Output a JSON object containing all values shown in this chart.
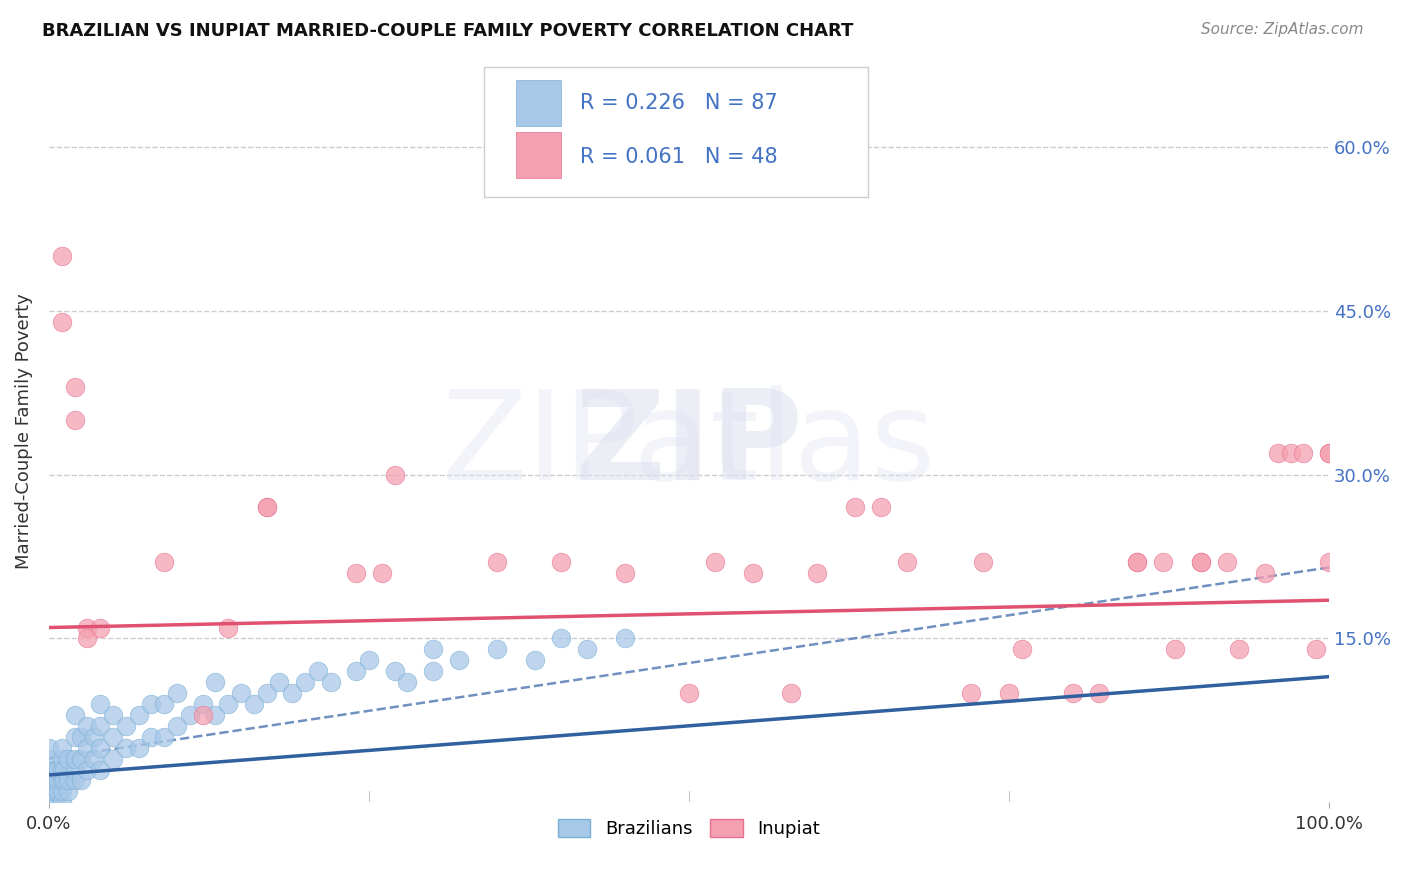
{
  "title": "BRAZILIAN VS INUPIAT MARRIED-COUPLE FAMILY POVERTY CORRELATION CHART",
  "source": "Source: ZipAtlas.com",
  "ylabel": "Married-Couple Family Poverty",
  "legend_label1": "Brazilians",
  "legend_label2": "Inupiat",
  "R1": 0.226,
  "N1": 87,
  "R2": 0.061,
  "N2": 48,
  "color1": "#a8c8e8",
  "color2": "#f4a0b0",
  "color1_edge": "#7aafd4",
  "color2_edge": "#e87090",
  "regression_color1": "#3060a0",
  "regression_color2": "#e05070",
  "dash_color": "#7090c0",
  "xlim": [
    0.0,
    1.0
  ],
  "ylim": [
    0.0,
    0.68
  ],
  "ytick_vals": [
    0.15,
    0.3,
    0.45,
    0.6
  ],
  "ytick_labels": [
    "15.0%",
    "30.0%",
    "45.0%",
    "60.0%"
  ],
  "background_color": "#ffffff",
  "brazil_x": [
    0.0,
    0.0,
    0.0,
    0.0,
    0.0,
    0.0,
    0.0,
    0.0,
    0.0,
    0.0,
    0.0,
    0.0,
    0.0,
    0.0,
    0.005,
    0.005,
    0.005,
    0.005,
    0.007,
    0.007,
    0.007,
    0.01,
    0.01,
    0.01,
    0.01,
    0.01,
    0.01,
    0.012,
    0.012,
    0.015,
    0.015,
    0.015,
    0.02,
    0.02,
    0.02,
    0.02,
    0.02,
    0.025,
    0.025,
    0.025,
    0.03,
    0.03,
    0.03,
    0.035,
    0.035,
    0.04,
    0.04,
    0.04,
    0.04,
    0.05,
    0.05,
    0.05,
    0.06,
    0.06,
    0.07,
    0.07,
    0.08,
    0.08,
    0.09,
    0.09,
    0.1,
    0.1,
    0.11,
    0.12,
    0.13,
    0.13,
    0.14,
    0.15,
    0.16,
    0.17,
    0.18,
    0.19,
    0.2,
    0.21,
    0.22,
    0.24,
    0.25,
    0.27,
    0.28,
    0.3,
    0.3,
    0.32,
    0.35,
    0.38,
    0.4,
    0.42,
    0.45
  ],
  "brazil_y": [
    0.0,
    0.0,
    0.0,
    0.0,
    0.005,
    0.005,
    0.01,
    0.01,
    0.01,
    0.02,
    0.02,
    0.03,
    0.04,
    0.05,
    0.0,
    0.01,
    0.02,
    0.03,
    0.01,
    0.02,
    0.03,
    0.0,
    0.01,
    0.02,
    0.03,
    0.04,
    0.05,
    0.02,
    0.03,
    0.01,
    0.02,
    0.04,
    0.02,
    0.03,
    0.04,
    0.06,
    0.08,
    0.02,
    0.04,
    0.06,
    0.03,
    0.05,
    0.07,
    0.04,
    0.06,
    0.03,
    0.05,
    0.07,
    0.09,
    0.04,
    0.06,
    0.08,
    0.05,
    0.07,
    0.05,
    0.08,
    0.06,
    0.09,
    0.06,
    0.09,
    0.07,
    0.1,
    0.08,
    0.09,
    0.08,
    0.11,
    0.09,
    0.1,
    0.09,
    0.1,
    0.11,
    0.1,
    0.11,
    0.12,
    0.11,
    0.12,
    0.13,
    0.12,
    0.11,
    0.12,
    0.14,
    0.13,
    0.14,
    0.13,
    0.15,
    0.14,
    0.15
  ],
  "inupiat_x": [
    0.01,
    0.01,
    0.02,
    0.02,
    0.03,
    0.03,
    0.04,
    0.09,
    0.12,
    0.14,
    0.17,
    0.17,
    0.24,
    0.26,
    0.27,
    0.35,
    0.4,
    0.45,
    0.5,
    0.52,
    0.55,
    0.58,
    0.6,
    0.63,
    0.65,
    0.67,
    0.72,
    0.73,
    0.75,
    0.76,
    0.8,
    0.82,
    0.85,
    0.85,
    0.87,
    0.88,
    0.9,
    0.9,
    0.92,
    0.93,
    0.95,
    0.96,
    0.97,
    0.98,
    0.99,
    1.0,
    1.0,
    1.0
  ],
  "inupiat_y": [
    0.5,
    0.44,
    0.38,
    0.35,
    0.16,
    0.15,
    0.16,
    0.22,
    0.08,
    0.16,
    0.27,
    0.27,
    0.21,
    0.21,
    0.3,
    0.22,
    0.22,
    0.21,
    0.1,
    0.22,
    0.21,
    0.1,
    0.21,
    0.27,
    0.27,
    0.22,
    0.1,
    0.22,
    0.1,
    0.14,
    0.1,
    0.1,
    0.22,
    0.22,
    0.22,
    0.14,
    0.22,
    0.22,
    0.22,
    0.14,
    0.21,
    0.32,
    0.32,
    0.32,
    0.14,
    0.22,
    0.32,
    0.32
  ],
  "brazil_reg": [
    0.025,
    0.115
  ],
  "inupiat_reg": [
    0.16,
    0.185
  ],
  "dash_reg": [
    0.04,
    0.215
  ],
  "title_fontsize": 13,
  "source_fontsize": 11,
  "tick_fontsize": 13,
  "ylabel_fontsize": 13,
  "legend_fontsize": 15
}
